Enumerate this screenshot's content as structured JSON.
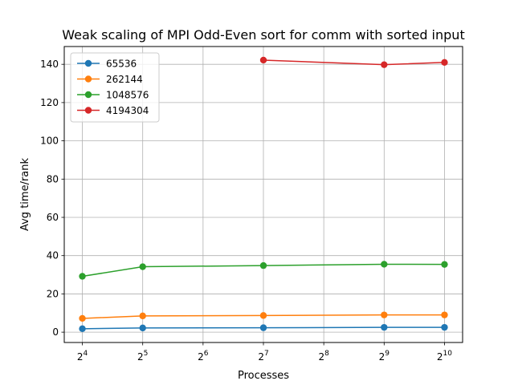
{
  "chart_data": {
    "type": "line",
    "title": "Weak scaling of MPI Odd-Even sort for comm with sorted input",
    "xlabel": "Processes",
    "ylabel": "Avg time/rank",
    "x_scale": "log2",
    "x_ticks": [
      {
        "value": 16,
        "base": "2",
        "exp": "4"
      },
      {
        "value": 32,
        "base": "2",
        "exp": "5"
      },
      {
        "value": 64,
        "base": "2",
        "exp": "6"
      },
      {
        "value": 128,
        "base": "2",
        "exp": "7"
      },
      {
        "value": 256,
        "base": "2",
        "exp": "8"
      },
      {
        "value": 512,
        "base": "2",
        "exp": "9"
      },
      {
        "value": 1024,
        "base": "2",
        "exp": "10"
      }
    ],
    "y_ticks": [
      "0",
      "20",
      "40",
      "60",
      "80",
      "100",
      "120",
      "140"
    ],
    "ylim": [
      -5.4,
      149.3
    ],
    "grid": true,
    "legend_position": "top-left",
    "series": [
      {
        "name": "65536",
        "color": "#1f77b4",
        "x": [
          16,
          32,
          128,
          512,
          1024
        ],
        "values": [
          1.8,
          2.2,
          2.3,
          2.5,
          2.5
        ]
      },
      {
        "name": "262144",
        "color": "#ff7f0e",
        "x": [
          16,
          32,
          128,
          512,
          1024
        ],
        "values": [
          7.2,
          8.5,
          8.7,
          9.0,
          9.0
        ]
      },
      {
        "name": "1048576",
        "color": "#2ca02c",
        "x": [
          16,
          32,
          128,
          512,
          1024
        ],
        "values": [
          29.2,
          34.2,
          34.8,
          35.5,
          35.4
        ]
      },
      {
        "name": "4194304",
        "color": "#d62728",
        "x": [
          128,
          512,
          1024
        ],
        "values": [
          142.2,
          139.8,
          141.0
        ]
      }
    ]
  }
}
